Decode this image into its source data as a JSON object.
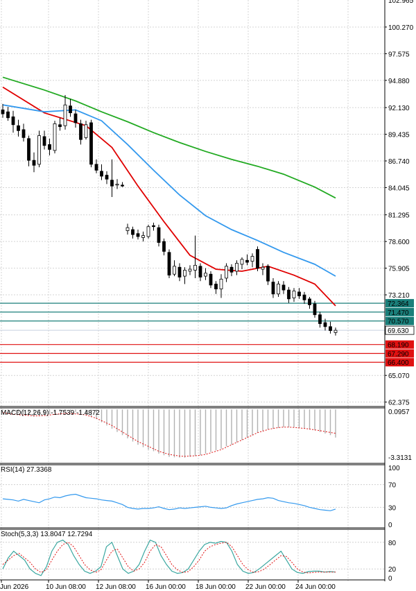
{
  "chart_data": [
    {
      "type": "candlestick",
      "panel": "price",
      "ylim": [
        62.0,
        103.0
      ],
      "y_ticks": [
        "100.270",
        "97.575",
        "94.880",
        "92.130",
        "89.435",
        "86.740",
        "84.045",
        "81.295",
        "78.600",
        "75.905",
        "73.210",
        "65.070",
        "62.375"
      ],
      "top_tick_partial": "102.965",
      "x_ticks": [
        "Jun 2026",
        "10 Jun 08:00",
        "12 Jun 08:00",
        "16 Jun 00:00",
        "18 Jun 00:00",
        "22 Jun 00:00",
        "24 Jun 00:00"
      ],
      "candles": [
        {
          "o": 91.9,
          "h": 92.5,
          "l": 91.1,
          "c": 91.5
        },
        {
          "o": 91.7,
          "h": 92.2,
          "l": 90.8,
          "c": 91.1
        },
        {
          "o": 91.2,
          "h": 91.8,
          "l": 89.6,
          "c": 90.4
        },
        {
          "o": 90.3,
          "h": 90.9,
          "l": 89.2,
          "c": 89.8
        },
        {
          "o": 89.9,
          "h": 90.5,
          "l": 88.7,
          "c": 89.1
        },
        {
          "o": 89.0,
          "h": 89.3,
          "l": 86.2,
          "c": 86.8
        },
        {
          "o": 86.8,
          "h": 87.6,
          "l": 85.6,
          "c": 86.3
        },
        {
          "o": 86.4,
          "h": 89.8,
          "l": 86.1,
          "c": 89.3
        },
        {
          "o": 89.2,
          "h": 89.8,
          "l": 87.9,
          "c": 88.3
        },
        {
          "o": 88.4,
          "h": 89.0,
          "l": 87.3,
          "c": 87.9
        },
        {
          "o": 87.8,
          "h": 90.8,
          "l": 87.5,
          "c": 90.5
        },
        {
          "o": 90.4,
          "h": 91.1,
          "l": 89.8,
          "c": 90.2
        },
        {
          "o": 90.3,
          "h": 93.4,
          "l": 89.9,
          "c": 92.4
        },
        {
          "o": 92.3,
          "h": 93.0,
          "l": 91.2,
          "c": 91.6
        },
        {
          "o": 91.5,
          "h": 91.9,
          "l": 90.1,
          "c": 90.6
        },
        {
          "o": 90.5,
          "h": 90.9,
          "l": 88.4,
          "c": 88.9
        },
        {
          "o": 89.1,
          "h": 90.8,
          "l": 88.9,
          "c": 90.4
        },
        {
          "o": 90.6,
          "h": 90.9,
          "l": 86.1,
          "c": 86.4
        },
        {
          "o": 86.4,
          "h": 86.9,
          "l": 85.5,
          "c": 85.8
        },
        {
          "o": 85.7,
          "h": 86.4,
          "l": 84.8,
          "c": 85.2
        },
        {
          "o": 85.3,
          "h": 85.7,
          "l": 84.4,
          "c": 84.9
        },
        {
          "o": 84.8,
          "h": 86.9,
          "l": 83.1,
          "c": 84.2
        },
        {
          "o": 84.3,
          "h": 84.9,
          "l": 83.9,
          "c": 84.4
        },
        {
          "o": 84.3,
          "h": 84.6,
          "l": 84.1,
          "c": 84.2
        },
        {
          "o": 79.7,
          "h": 80.4,
          "l": 79.3,
          "c": 80.0
        },
        {
          "o": 79.8,
          "h": 80.1,
          "l": 78.9,
          "c": 79.3
        },
        {
          "o": 79.4,
          "h": 79.8,
          "l": 78.8,
          "c": 79.1
        },
        {
          "o": 79.0,
          "h": 79.6,
          "l": 78.6,
          "c": 79.2
        },
        {
          "o": 79.1,
          "h": 80.3,
          "l": 78.9,
          "c": 80.1
        },
        {
          "o": 80.2,
          "h": 80.5,
          "l": 79.7,
          "c": 80.1
        },
        {
          "o": 80.0,
          "h": 80.3,
          "l": 78.1,
          "c": 78.5
        },
        {
          "o": 78.6,
          "h": 78.9,
          "l": 77.2,
          "c": 77.6
        },
        {
          "o": 77.5,
          "h": 77.8,
          "l": 74.9,
          "c": 75.2
        },
        {
          "o": 75.3,
          "h": 76.7,
          "l": 75.1,
          "c": 76.1
        },
        {
          "o": 76.0,
          "h": 76.4,
          "l": 74.6,
          "c": 75.0
        },
        {
          "o": 75.1,
          "h": 76.0,
          "l": 74.3,
          "c": 75.7
        },
        {
          "o": 75.6,
          "h": 76.2,
          "l": 75.2,
          "c": 75.8
        },
        {
          "o": 75.7,
          "h": 79.2,
          "l": 74.9,
          "c": 76.2
        },
        {
          "o": 76.1,
          "h": 76.4,
          "l": 74.6,
          "c": 75.0
        },
        {
          "o": 75.1,
          "h": 75.9,
          "l": 74.7,
          "c": 75.4
        },
        {
          "o": 75.3,
          "h": 75.6,
          "l": 73.9,
          "c": 74.2
        },
        {
          "o": 74.3,
          "h": 74.6,
          "l": 73.3,
          "c": 73.8
        },
        {
          "o": 73.8,
          "h": 75.3,
          "l": 72.9,
          "c": 74.8
        },
        {
          "o": 74.9,
          "h": 76.4,
          "l": 74.5,
          "c": 76.1
        },
        {
          "o": 76.0,
          "h": 76.3,
          "l": 75.1,
          "c": 75.5
        },
        {
          "o": 75.6,
          "h": 76.7,
          "l": 75.2,
          "c": 76.4
        },
        {
          "o": 76.3,
          "h": 77.0,
          "l": 75.8,
          "c": 76.8
        },
        {
          "o": 76.7,
          "h": 77.3,
          "l": 76.2,
          "c": 76.5
        },
        {
          "o": 76.6,
          "h": 77.4,
          "l": 76.0,
          "c": 77.1
        },
        {
          "o": 77.8,
          "h": 78.1,
          "l": 75.6,
          "c": 75.9
        },
        {
          "o": 75.8,
          "h": 76.4,
          "l": 75.2,
          "c": 76.0
        },
        {
          "o": 76.1,
          "h": 76.3,
          "l": 74.2,
          "c": 74.6
        },
        {
          "o": 74.5,
          "h": 74.9,
          "l": 72.9,
          "c": 73.3
        },
        {
          "o": 73.3,
          "h": 74.6,
          "l": 73.0,
          "c": 74.3
        },
        {
          "o": 74.2,
          "h": 74.6,
          "l": 73.3,
          "c": 73.7
        },
        {
          "o": 73.7,
          "h": 74.0,
          "l": 72.4,
          "c": 72.8
        },
        {
          "o": 72.9,
          "h": 73.9,
          "l": 72.5,
          "c": 73.6
        },
        {
          "o": 73.5,
          "h": 73.9,
          "l": 72.8,
          "c": 73.1
        },
        {
          "o": 73.2,
          "h": 73.5,
          "l": 72.3,
          "c": 72.7
        },
        {
          "o": 72.8,
          "h": 73.0,
          "l": 71.8,
          "c": 72.2
        },
        {
          "o": 72.3,
          "h": 72.6,
          "l": 70.9,
          "c": 71.2
        },
        {
          "o": 71.2,
          "h": 71.5,
          "l": 69.9,
          "c": 70.3
        },
        {
          "o": 70.4,
          "h": 70.8,
          "l": 69.6,
          "c": 70.0
        },
        {
          "o": 70.0,
          "h": 70.5,
          "l": 69.3,
          "c": 69.6
        },
        {
          "o": 69.4,
          "h": 69.9,
          "l": 69.1,
          "c": 69.63
        }
      ],
      "moving_averages": [
        {
          "color": "#e00000",
          "points": [
            [
              0,
              94.2
            ],
            [
              8,
              91.6
            ],
            [
              16,
              90.3
            ],
            [
              21,
              88.1
            ],
            [
              26,
              84.2
            ],
            [
              31,
              80.6
            ],
            [
              36,
              77.2
            ],
            [
              41,
              75.8
            ],
            [
              46,
              75.6
            ],
            [
              51,
              76.1
            ],
            [
              56,
              75.2
            ],
            [
              60,
              74.3
            ],
            [
              64,
              72.1
            ]
          ]
        },
        {
          "color": "#3399ee",
          "points": [
            [
              0,
              92.4
            ],
            [
              8,
              91.7
            ],
            [
              14,
              91.9
            ],
            [
              19,
              90.8
            ],
            [
              24,
              88.4
            ],
            [
              29,
              85.8
            ],
            [
              34,
              83.3
            ],
            [
              39,
              81.2
            ],
            [
              44,
              79.8
            ],
            [
              49,
              78.7
            ],
            [
              54,
              77.5
            ],
            [
              60,
              76.3
            ],
            [
              64,
              75.1
            ]
          ]
        },
        {
          "color": "#22aa22",
          "points": [
            [
              0,
              95.2
            ],
            [
              8,
              93.9
            ],
            [
              14,
              92.8
            ],
            [
              19,
              91.7
            ],
            [
              24,
              90.7
            ],
            [
              29,
              89.6
            ],
            [
              34,
              88.6
            ],
            [
              39,
              87.7
            ],
            [
              44,
              86.9
            ],
            [
              49,
              86.2
            ],
            [
              54,
              85.4
            ],
            [
              60,
              84.1
            ],
            [
              64,
              83.0
            ]
          ]
        }
      ],
      "levels": [
        {
          "value": 72.364,
          "label": "72.364",
          "color": "#1a7f7a"
        },
        {
          "value": 71.47,
          "label": "71.470",
          "color": "#1a7f7a"
        },
        {
          "value": 70.57,
          "label": "70.570",
          "color": "#1a7f7a"
        },
        {
          "value": 68.19,
          "label": "68.190",
          "color": "#e01010"
        },
        {
          "value": 67.29,
          "label": "67.290",
          "color": "#e01010"
        },
        {
          "value": 66.4,
          "label": "66.400",
          "color": "#e01010"
        }
      ],
      "current_price": "69.630"
    },
    {
      "type": "bar",
      "panel": "macd",
      "label": "MACD(12,26,9) -1.7539 -1.4872",
      "top_tick": "0.0957",
      "bottom_tick": "-3.3131",
      "ylim": [
        -3.3131,
        0.0957
      ],
      "histogram": [
        -0.05,
        -0.1,
        -0.15,
        -0.25,
        -0.3,
        -0.35,
        -0.45,
        -0.4,
        -0.35,
        -0.3,
        -0.2,
        -0.15,
        -0.1,
        -0.1,
        -0.15,
        -0.25,
        -0.3,
        -0.45,
        -0.6,
        -0.8,
        -1.0,
        -1.2,
        -1.4,
        -1.6,
        -1.8,
        -2.0,
        -2.2,
        -2.35,
        -2.5,
        -2.6,
        -2.75,
        -2.85,
        -2.95,
        -2.98,
        -3.0,
        -3.0,
        -2.95,
        -2.9,
        -2.85,
        -2.75,
        -2.65,
        -2.55,
        -2.45,
        -2.3,
        -2.2,
        -2.05,
        -1.9,
        -1.75,
        -1.6,
        -1.45,
        -1.35,
        -1.25,
        -1.2,
        -1.15,
        -1.1,
        -1.1,
        -1.1,
        -1.15,
        -1.2,
        -1.25,
        -1.3,
        -1.4,
        -1.5,
        -1.6,
        -1.75
      ],
      "signal": [
        -0.2,
        -0.25,
        -0.3,
        -0.33,
        -0.35,
        -0.38,
        -0.4,
        -0.4,
        -0.38,
        -0.35,
        -0.3,
        -0.28,
        -0.25,
        -0.25,
        -0.28,
        -0.3,
        -0.35,
        -0.45,
        -0.55,
        -0.7,
        -0.85,
        -1.0,
        -1.2,
        -1.4,
        -1.6,
        -1.8,
        -2.0,
        -2.15,
        -2.3,
        -2.45,
        -2.6,
        -2.7,
        -2.8,
        -2.85,
        -2.9,
        -2.92,
        -2.9,
        -2.88,
        -2.85,
        -2.8,
        -2.7,
        -2.6,
        -2.5,
        -2.35,
        -2.2,
        -2.05,
        -1.9,
        -1.75,
        -1.6,
        -1.45,
        -1.35,
        -1.25,
        -1.18,
        -1.13,
        -1.1,
        -1.1,
        -1.12,
        -1.15,
        -1.18,
        -1.22,
        -1.27,
        -1.32,
        -1.38,
        -1.43,
        -1.49
      ]
    },
    {
      "type": "line",
      "panel": "rsi",
      "label": "RSI(14) 27.3368",
      "ylim": [
        0,
        100
      ],
      "y_ticks": [
        "100",
        "70",
        "30",
        "0"
      ],
      "values": [
        45,
        44,
        43,
        41,
        44,
        42,
        40,
        38,
        43,
        45,
        48,
        47,
        50,
        52,
        53,
        50,
        47,
        46,
        45,
        43,
        42,
        41,
        38,
        35,
        30,
        28,
        27,
        28,
        28,
        29,
        31,
        28,
        26,
        27,
        29,
        28,
        29,
        30,
        31,
        32,
        30,
        29,
        28,
        29,
        33,
        36,
        38,
        40,
        42,
        44,
        45,
        47,
        46,
        42,
        40,
        38,
        37,
        35,
        33,
        30,
        28,
        26,
        25,
        24,
        27
      ]
    },
    {
      "type": "line",
      "panel": "stoch",
      "label": "Stoch(5,3,3) 13.8047 12.7294",
      "ylim": [
        0,
        100
      ],
      "y_ticks": [
        "80",
        "20",
        "0"
      ],
      "k": [
        20,
        45,
        60,
        50,
        40,
        20,
        10,
        5,
        25,
        60,
        80,
        85,
        75,
        50,
        30,
        15,
        10,
        15,
        25,
        70,
        80,
        50,
        20,
        10,
        15,
        30,
        60,
        85,
        80,
        50,
        30,
        15,
        10,
        12,
        20,
        40,
        60,
        75,
        80,
        78,
        82,
        80,
        60,
        30,
        15,
        10,
        12,
        20,
        30,
        40,
        50,
        60,
        40,
        20,
        12,
        10,
        14,
        15,
        15,
        13,
        14,
        13
      ],
      "d": [
        30,
        40,
        50,
        55,
        45,
        35,
        20,
        12,
        18,
        40,
        60,
        75,
        80,
        70,
        50,
        30,
        18,
        12,
        18,
        40,
        60,
        65,
        45,
        25,
        15,
        20,
        35,
        60,
        75,
        70,
        50,
        30,
        18,
        12,
        14,
        25,
        40,
        60,
        70,
        75,
        78,
        80,
        70,
        50,
        30,
        18,
        12,
        14,
        20,
        30,
        40,
        50,
        48,
        35,
        20,
        13,
        11,
        12,
        13,
        13,
        13,
        13
      ]
    }
  ]
}
